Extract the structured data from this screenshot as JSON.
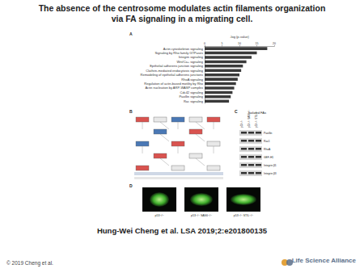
{
  "title": "The absence of the centrosome modulates actin filaments organization via FA signaling in a migrating cell.",
  "panels": {
    "a": "A",
    "b": "B",
    "c": "C",
    "d": "D"
  },
  "chart_data": {
    "type": "bar",
    "orientation": "horizontal",
    "x_label": "-log (p-value)",
    "categories": [
      "Actin cytoskeleton signaling",
      "Signaling by Rho family GTPases",
      "Integrin signaling",
      "Wnt/Ca+ signaling",
      "Epithelial adherens junction signaling",
      "Clathrin-mediated endocytosis signaling",
      "Remodeling of epithelial adherens junctions",
      "RhoA signaling",
      "Regulation of actin-based motility by Rho",
      "Actin nucleation by ARP-WASP complex",
      "Cdc42 signaling",
      "Paxillin signaling",
      "Rac signaling"
    ],
    "values": [
      18,
      15,
      13.5,
      12,
      11,
      10.5,
      10,
      9.5,
      9,
      8.5,
      8,
      7.5,
      7
    ],
    "color": "#3a3a3a",
    "xlim": [
      0,
      20
    ],
    "xticks": [
      0,
      5,
      10,
      15,
      20
    ],
    "grid": false
  },
  "panel_c": {
    "header": "Isolated FAs",
    "proteins": [
      "Paxillin",
      "Rac1",
      "RhoA",
      "GEF-H1",
      "Integrin β1",
      "Integrin β3"
    ]
  },
  "genotypes": [
    "p53−/−",
    "p53−/− SAS6−/−",
    "p53−/− STIL−/−"
  ],
  "citation": "Hung-Wei Cheng et al. LSA 2019;2:e201800135",
  "copyright": "© 2019 Cheng et al.",
  "logo": "Life Science Alliance"
}
